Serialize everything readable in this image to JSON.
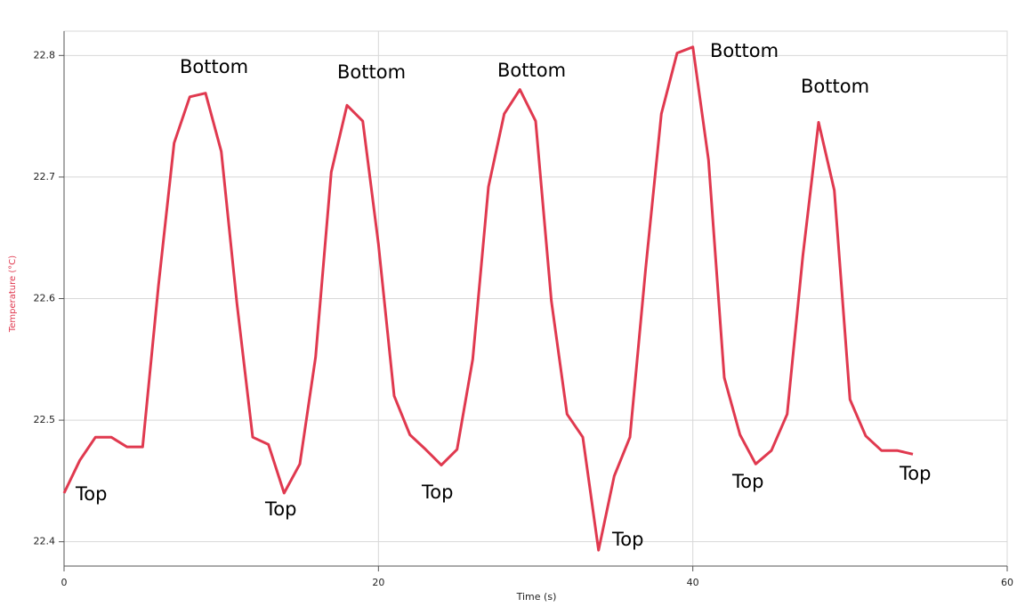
{
  "chart_data": {
    "type": "line",
    "x_label": "Time (s)",
    "y_label": "Temperature (°C)",
    "x": [
      0,
      1,
      2,
      3,
      4,
      5,
      6,
      7,
      8,
      9,
      10,
      11,
      12,
      13,
      14,
      15,
      16,
      17,
      18,
      19,
      20,
      21,
      22,
      23,
      24,
      25,
      26,
      27,
      28,
      29,
      30,
      31,
      32,
      33,
      34,
      35,
      36,
      37,
      38,
      39,
      40,
      41,
      42,
      43,
      44,
      45,
      46,
      47,
      48,
      49,
      50,
      51,
      52,
      53,
      54
    ],
    "series": [
      {
        "name": "Temperature",
        "color": "#e0394f",
        "values": [
          22.44,
          22.467,
          22.486,
          22.486,
          22.478,
          22.478,
          22.61,
          22.728,
          22.766,
          22.769,
          22.721,
          22.596,
          22.486,
          22.48,
          22.44,
          22.464,
          22.552,
          22.704,
          22.759,
          22.746,
          22.645,
          22.52,
          22.488,
          22.476,
          22.463,
          22.476,
          22.55,
          22.692,
          22.752,
          22.772,
          22.746,
          22.598,
          22.505,
          22.486,
          22.393,
          22.454,
          22.486,
          22.625,
          22.752,
          22.802,
          22.807,
          22.714,
          22.535,
          22.488,
          22.464,
          22.475,
          22.505,
          22.635,
          22.745,
          22.689,
          22.517,
          22.487,
          22.475,
          22.475,
          22.472
        ]
      }
    ],
    "annotations": [
      "Top",
      "Bottom",
      "Top",
      "Bottom",
      "Top",
      "Bottom",
      "Top",
      "Bottom",
      "Top",
      "Bottom",
      "Top"
    ],
    "xlim": [
      0,
      60
    ],
    "xticks": [
      0,
      20,
      40,
      60
    ],
    "ylim": [
      22.38,
      22.82
    ],
    "yticks": [
      22.4,
      22.5,
      22.6,
      22.7,
      22.8
    ],
    "grid": true
  }
}
